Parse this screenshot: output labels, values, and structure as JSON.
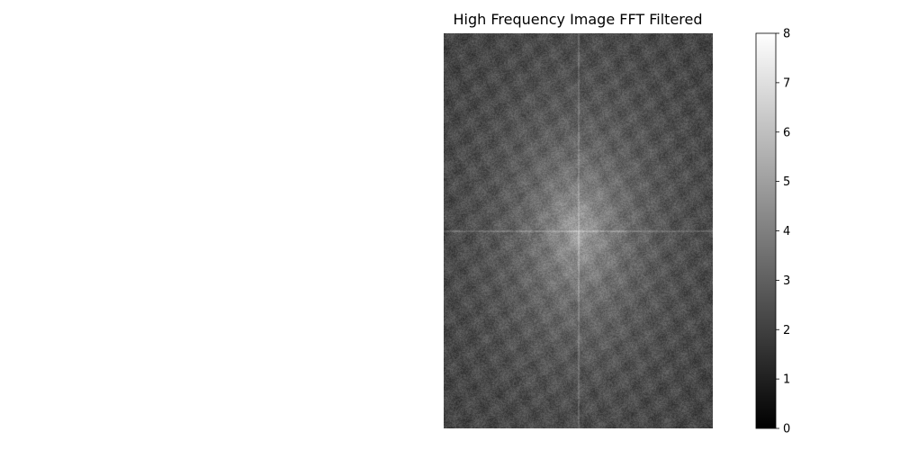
{
  "chart_data": {
    "type": "heatmap",
    "title": "High Frequency Image FFT Filtered",
    "xlabel": "",
    "ylabel": "",
    "axes_visible": false,
    "colormap": "gray",
    "colorbar": {
      "range": [
        0,
        8
      ],
      "ticks": [
        "0",
        "1",
        "2",
        "3",
        "4",
        "5",
        "6",
        "7",
        "8"
      ]
    },
    "spectrum": {
      "center_peak_level": 5.2,
      "corner_level": 2.0,
      "description_note": ""
    }
  }
}
